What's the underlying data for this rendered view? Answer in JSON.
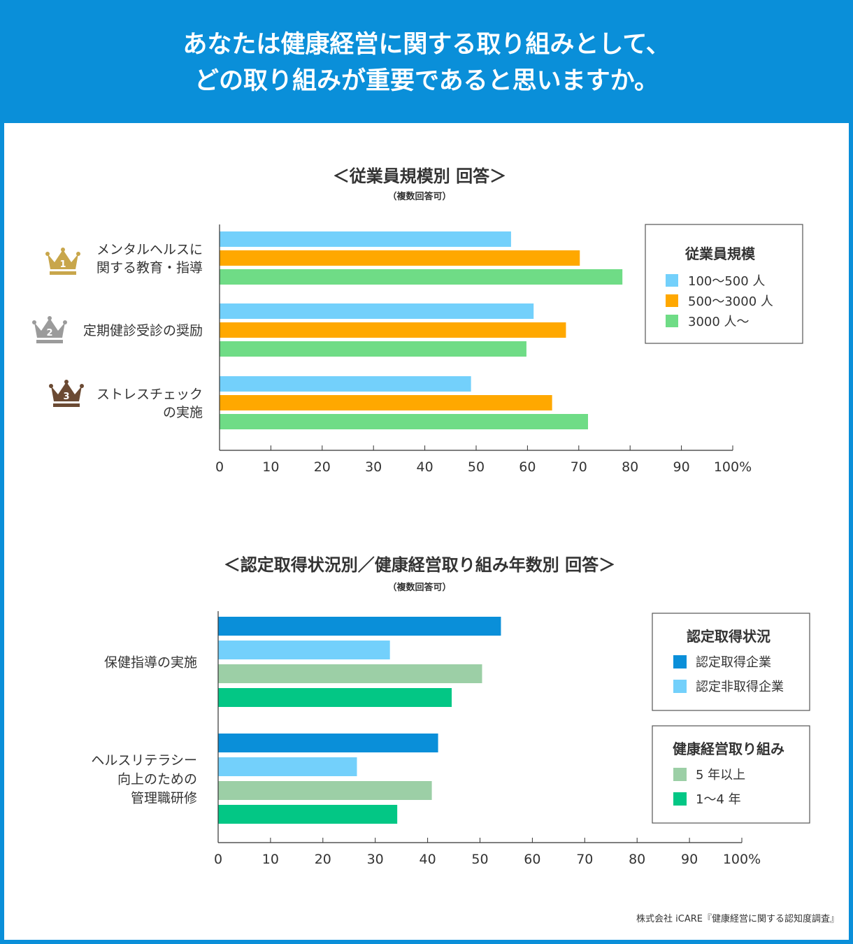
{
  "header": {
    "title_line1": "あなたは健康経営に関する取り組みとして、",
    "title_line2": "どの取り組みが重要であると思いますか。"
  },
  "source": "株式会社 iCARE『健康経営に関する認知度調査』",
  "colors": {
    "header_bg": "#0a8fd9",
    "light_blue": "#73d0fb",
    "orange": "#ffa800",
    "green": "#6fdc86",
    "dark_blue": "#0a8fd9",
    "sage": "#9ccfa6",
    "teal": "#03c785",
    "gold": "#c8a64b",
    "silver": "#9b9b9b",
    "bronze": "#6b4a33"
  },
  "chart_data": [
    {
      "type": "bar",
      "orientation": "horizontal",
      "title": "＜従業員規模別 回答＞",
      "subtitle": "（複数回答可）",
      "categories": [
        {
          "label_lines": [
            "メンタルヘルスに",
            "関する教育・指導"
          ],
          "rank": "1"
        },
        {
          "label_lines": [
            "定期健診受診の奨励"
          ],
          "rank": "2"
        },
        {
          "label_lines": [
            "ストレスチェック",
            "の実施"
          ],
          "rank": "3"
        }
      ],
      "series": [
        {
          "name": "100～500 人",
          "color": "#73d0fb",
          "values": [
            56.8,
            61.2,
            49.0
          ]
        },
        {
          "name": "500～3000 人",
          "color": "#ffa800",
          "values": [
            70.2,
            67.5,
            64.8
          ]
        },
        {
          "name": "3000 人～",
          "color": "#6fdc86",
          "values": [
            78.5,
            59.8,
            71.8
          ]
        }
      ],
      "xlim": [
        0,
        100
      ],
      "ticks": [
        "0",
        "10",
        "20",
        "30",
        "40",
        "50",
        "60",
        "70",
        "80",
        "90",
        "100"
      ],
      "unit": "%",
      "legend_title": "従業員規模",
      "legend_position": "top-right"
    },
    {
      "type": "bar",
      "orientation": "horizontal",
      "title": "＜認定取得状況別／健康経営取り組み年数別 回答＞",
      "subtitle": "（複数回答可）",
      "categories": [
        {
          "label_lines": [
            "保健指導の実施"
          ]
        },
        {
          "label_lines": [
            "ヘルスリテラシー",
            "向上のための",
            "管理職研修"
          ]
        }
      ],
      "series": [
        {
          "name": "認定取得企業",
          "group": 0,
          "color": "#0a8fd9",
          "values": [
            54.0,
            42.0
          ]
        },
        {
          "name": "認定非取得企業",
          "group": 0,
          "color": "#73d0fb",
          "values": [
            32.8,
            26.5
          ]
        },
        {
          "name": "5 年以上",
          "group": 1,
          "color": "#9ccfa6",
          "values": [
            50.4,
            40.8
          ]
        },
        {
          "name": "1～4 年",
          "group": 1,
          "color": "#03c785",
          "values": [
            44.6,
            34.2
          ]
        }
      ],
      "xlim": [
        0,
        100
      ],
      "ticks": [
        "0",
        "10",
        "20",
        "30",
        "40",
        "50",
        "60",
        "70",
        "80",
        "90",
        "100"
      ],
      "unit": "%",
      "legend_groups": [
        "認定取得状況",
        "健康経営取り組み"
      ],
      "legend_position": "right"
    }
  ]
}
